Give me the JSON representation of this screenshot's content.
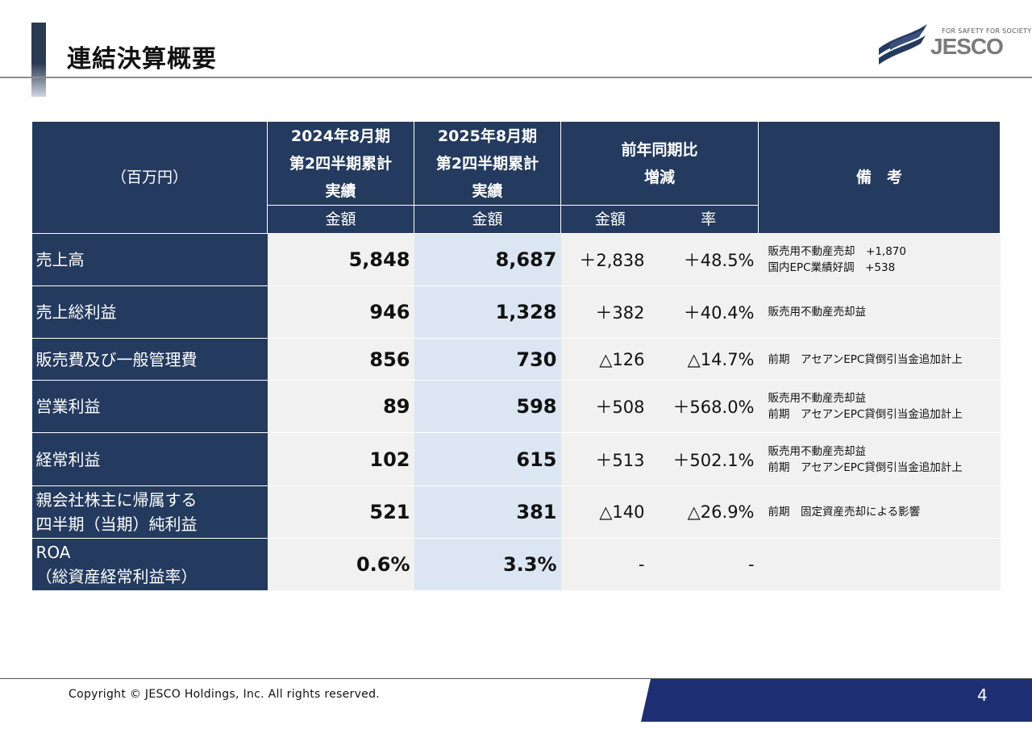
{
  "page": {
    "title": "連結決算概要",
    "logo_tagline": "FOR SAFETY FOR SOCIETY",
    "logo_text": "JESCO",
    "copyright": "Copyright © JESCO Holdings, Inc. All rights reserved.",
    "page_number": "4"
  },
  "table": {
    "unit_label": "（百万円）",
    "col_2024": [
      "2024年8月期",
      "第2四半期累計",
      "実績"
    ],
    "col_2025": [
      "2025年8月期",
      "第2四半期累計",
      "実績"
    ],
    "col_change": [
      "前年同期比",
      "増減"
    ],
    "col_notes": "備　考",
    "sub_amount_2024": "金額",
    "sub_amount_2025": "金額",
    "sub_change_amount": "金額",
    "sub_change_rate": "率",
    "rows": [
      {
        "label": [
          "売上高"
        ],
        "v2024": "5,848",
        "v2025": "8,687",
        "chg": "＋2,838",
        "rate": "＋48.5%",
        "notes": [
          "販売用不動産売却　+1,870",
          "国内EPC業績好調　+538"
        ]
      },
      {
        "label": [
          "売上総利益"
        ],
        "v2024": "946",
        "v2025": "1,328",
        "chg": "＋382",
        "rate": "＋40.4%",
        "notes": [
          "販売用不動産売却益"
        ]
      },
      {
        "label": [
          "販売費及び一般管理費"
        ],
        "v2024": "856",
        "v2025": "730",
        "chg": "△126",
        "rate": "△14.7%",
        "notes": [
          "前期　アセアンEPC貸倒引当金追加計上"
        ]
      },
      {
        "label": [
          "営業利益"
        ],
        "v2024": "89",
        "v2025": "598",
        "chg": "＋508",
        "rate": "＋568.0%",
        "notes": [
          "販売用不動産売却益",
          "前期　アセアンEPC貸倒引当金追加計上"
        ]
      },
      {
        "label": [
          "経常利益"
        ],
        "v2024": "102",
        "v2025": "615",
        "chg": "＋513",
        "rate": "＋502.1%",
        "notes": [
          "販売用不動産売却益",
          "前期　アセアンEPC貸倒引当金追加計上"
        ]
      },
      {
        "label": [
          "親会社株主に帰属する",
          "四半期（当期）純利益"
        ],
        "v2024": "521",
        "v2025": "381",
        "chg": "△140",
        "rate": "△26.9%",
        "notes": [
          "前期　固定資産売却による影響"
        ]
      },
      {
        "label": [
          "ROA",
          "（総資産経常利益率）"
        ],
        "v2024": "0.6%",
        "v2025": "3.3%",
        "chg": "-",
        "rate": "-",
        "notes": []
      }
    ]
  }
}
